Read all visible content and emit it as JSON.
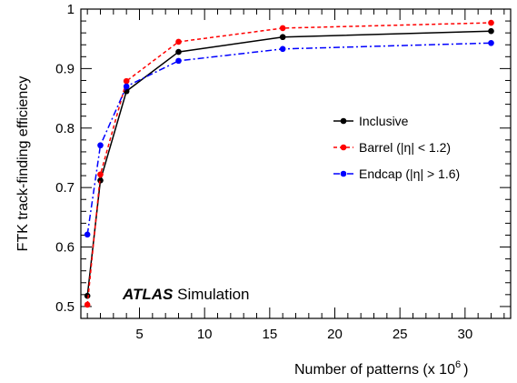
{
  "chart_data": {
    "type": "line",
    "xlabel": "Number of patterns (x 10",
    "xlabel_exp": "6",
    "xlabel_close": ")",
    "ylabel": "FTK track-finding efficiency",
    "xlim": [
      0.5,
      33.5
    ],
    "ylim": [
      0.48,
      1.0
    ],
    "xticks": [
      5,
      10,
      15,
      20,
      25,
      30
    ],
    "yticks": [
      0.5,
      0.6,
      0.7,
      0.8,
      0.9,
      1
    ],
    "ytick_labels": [
      "0.5",
      "0.6",
      "0.7",
      "0.8",
      "0.9",
      "1"
    ],
    "legend_position": "middle-right",
    "grid": false,
    "annotation": {
      "bold": "ATLAS",
      "text": " Simulation"
    },
    "series": [
      {
        "name": "Inclusive",
        "color": "#000000",
        "dash": "solid",
        "marker_color": "#000000",
        "x": [
          1,
          2,
          4,
          8,
          16,
          32
        ],
        "y": [
          0.518,
          0.712,
          0.862,
          0.928,
          0.953,
          0.963
        ]
      },
      {
        "name": "Barrel (|η| < 1.2)",
        "color": "#ff0000",
        "dash": "dashed",
        "marker_color": "#ff0000",
        "x": [
          1,
          2,
          4,
          8,
          16,
          32
        ],
        "y": [
          0.503,
          0.722,
          0.879,
          0.945,
          0.968,
          0.977
        ]
      },
      {
        "name": "Endcap (|η| > 1.6)",
        "color": "#0000ff",
        "dash": "dashdot",
        "marker_color": "#0000ff",
        "x": [
          1,
          2,
          4,
          8,
          16,
          32
        ],
        "y": [
          0.621,
          0.771,
          0.87,
          0.913,
          0.933,
          0.943
        ]
      }
    ]
  }
}
